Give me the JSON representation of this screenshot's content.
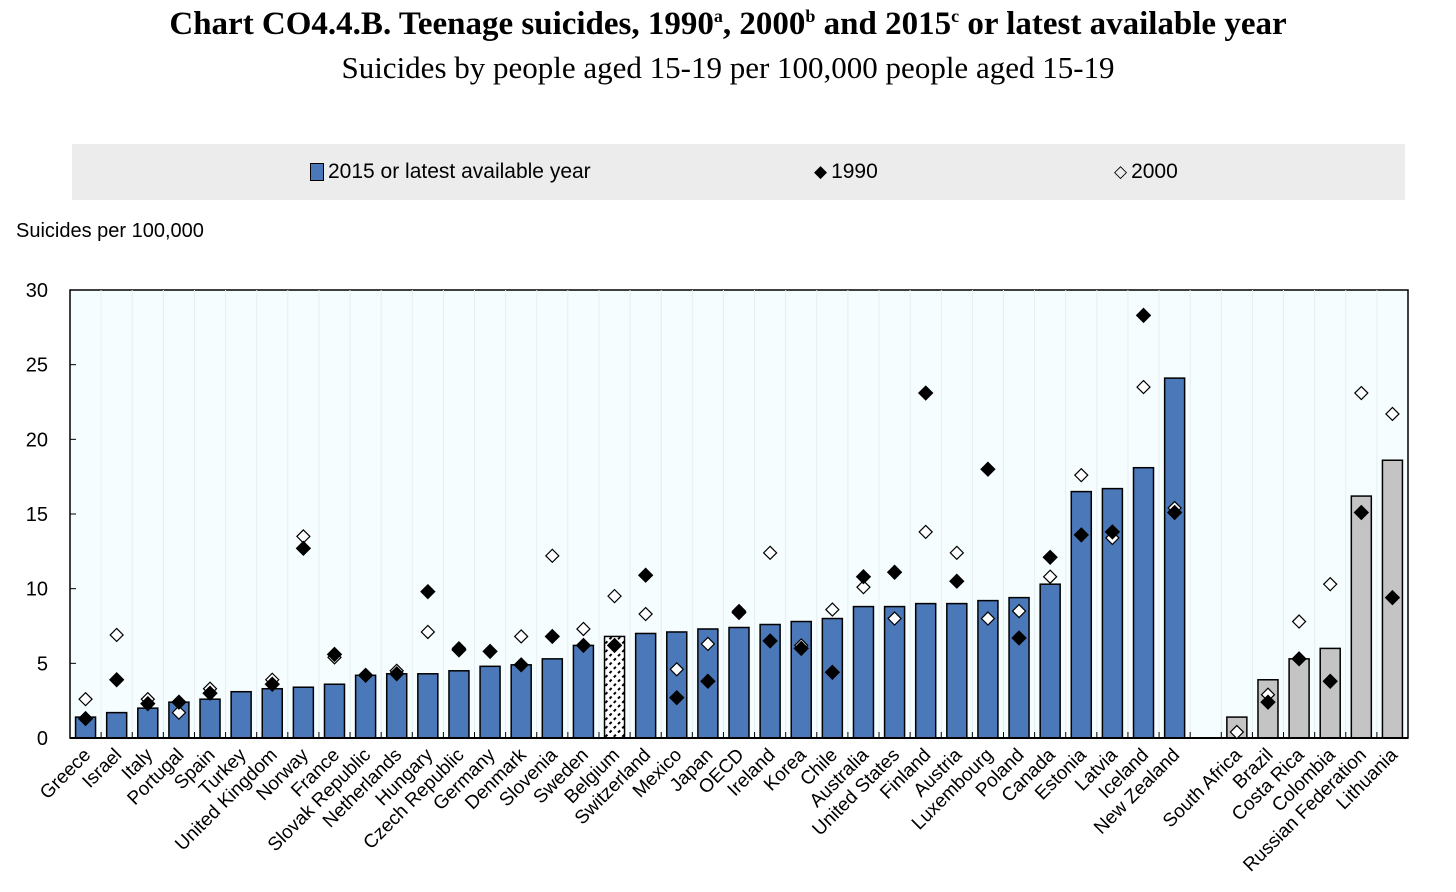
{
  "title": {
    "main": "Chart CO4.4.B. Teenage suicides, 1990",
    "sup_a": "a",
    ", 2000": ", 2000",
    "sup_b": "b",
    "and": " and 2015",
    "sup_c": "c",
    "rest": " or latest available year"
  },
  "subtitle": "Suicides by people aged 15-19 per 100,000 people aged 15-19",
  "colors": {
    "oecd_bar": "#4a78b9",
    "partner_bar": "#c4c4c4",
    "plot_bg": "#f5fdff"
  },
  "chart_data": {
    "type": "bar",
    "title": "Chart CO4.4.B. Teenage suicides, 1990a, 2000b and 2015c or latest available year",
    "ylabel": "Suicides per 100,000",
    "ylim": [
      0,
      30
    ],
    "yticks": [
      0,
      5,
      10,
      15,
      20,
      25,
      30
    ],
    "legend": [
      "2015 or latest available year",
      "1990",
      "2000"
    ],
    "legend_placement": "top",
    "categories": [
      "Greece",
      "Israel",
      "Italy",
      "Portugal",
      "Spain",
      "Turkey",
      "United Kingdom",
      "Norway",
      "France",
      "Slovak Republic",
      "Netherlands",
      "Hungary",
      "Czech Republic",
      "Germany",
      "Denmark",
      "Slovenia",
      "Sweden",
      "Belgium",
      "Switzerland",
      "Mexico",
      "Japan",
      "OECD",
      "Ireland",
      "Korea",
      "Chile",
      "Australia",
      "United States",
      "Finland",
      "Austria",
      "Luxembourg",
      "Poland",
      "Canada",
      "Estonia",
      "Latvia",
      "Iceland",
      "New Zealand",
      "",
      "South Africa",
      "Brazil",
      "Costa Rica",
      "Colombia",
      "Russian Federation",
      "Lithuania"
    ],
    "group": [
      "oecd",
      "oecd",
      "oecd",
      "oecd",
      "oecd",
      "oecd",
      "oecd",
      "oecd",
      "oecd",
      "oecd",
      "oecd",
      "oecd",
      "oecd",
      "oecd",
      "oecd",
      "oecd",
      "oecd",
      "hatched",
      "oecd",
      "oecd",
      "oecd",
      "oecd",
      "oecd",
      "oecd",
      "oecd",
      "oecd",
      "oecd",
      "oecd",
      "oecd",
      "oecd",
      "oecd",
      "oecd",
      "oecd",
      "oecd",
      "oecd",
      "oecd",
      "gap",
      "partner",
      "partner",
      "partner",
      "partner",
      "partner",
      "partner"
    ],
    "series": [
      {
        "name": "2015 or latest available year",
        "values": [
          1.4,
          1.7,
          2.0,
          2.4,
          2.6,
          3.1,
          3.3,
          3.4,
          3.6,
          4.2,
          4.3,
          4.3,
          4.5,
          4.8,
          4.9,
          5.3,
          6.2,
          6.8,
          7.0,
          7.1,
          7.3,
          7.4,
          7.6,
          7.8,
          8.0,
          8.8,
          8.8,
          9.0,
          9.0,
          9.2,
          9.4,
          10.3,
          16.5,
          16.7,
          18.1,
          24.1,
          null,
          1.4,
          3.9,
          5.3,
          6.0,
          16.2,
          18.6
        ]
      },
      {
        "name": "1990",
        "values": [
          1.3,
          3.9,
          2.3,
          2.4,
          3.0,
          null,
          3.6,
          12.7,
          5.6,
          4.2,
          4.3,
          9.8,
          5.9,
          5.8,
          4.9,
          6.8,
          6.2,
          6.2,
          10.9,
          2.7,
          3.8,
          8.4,
          6.5,
          6.0,
          4.4,
          10.8,
          11.1,
          23.1,
          10.5,
          18.0,
          6.7,
          12.1,
          13.6,
          13.8,
          28.3,
          15.1,
          null,
          null,
          2.4,
          5.3,
          3.8,
          15.1,
          9.4
        ]
      },
      {
        "name": "2000",
        "values": [
          2.6,
          6.9,
          2.6,
          1.7,
          3.3,
          null,
          3.9,
          13.5,
          5.4,
          4.2,
          4.5,
          7.1,
          6.0,
          5.8,
          6.8,
          12.2,
          7.3,
          9.5,
          8.3,
          4.6,
          6.3,
          8.5,
          12.4,
          6.2,
          8.6,
          10.1,
          8.0,
          13.8,
          12.4,
          8.0,
          8.5,
          10.8,
          17.6,
          13.4,
          23.5,
          15.4,
          null,
          0.4,
          2.9,
          7.8,
          10.3,
          23.1,
          21.7
        ]
      }
    ]
  }
}
